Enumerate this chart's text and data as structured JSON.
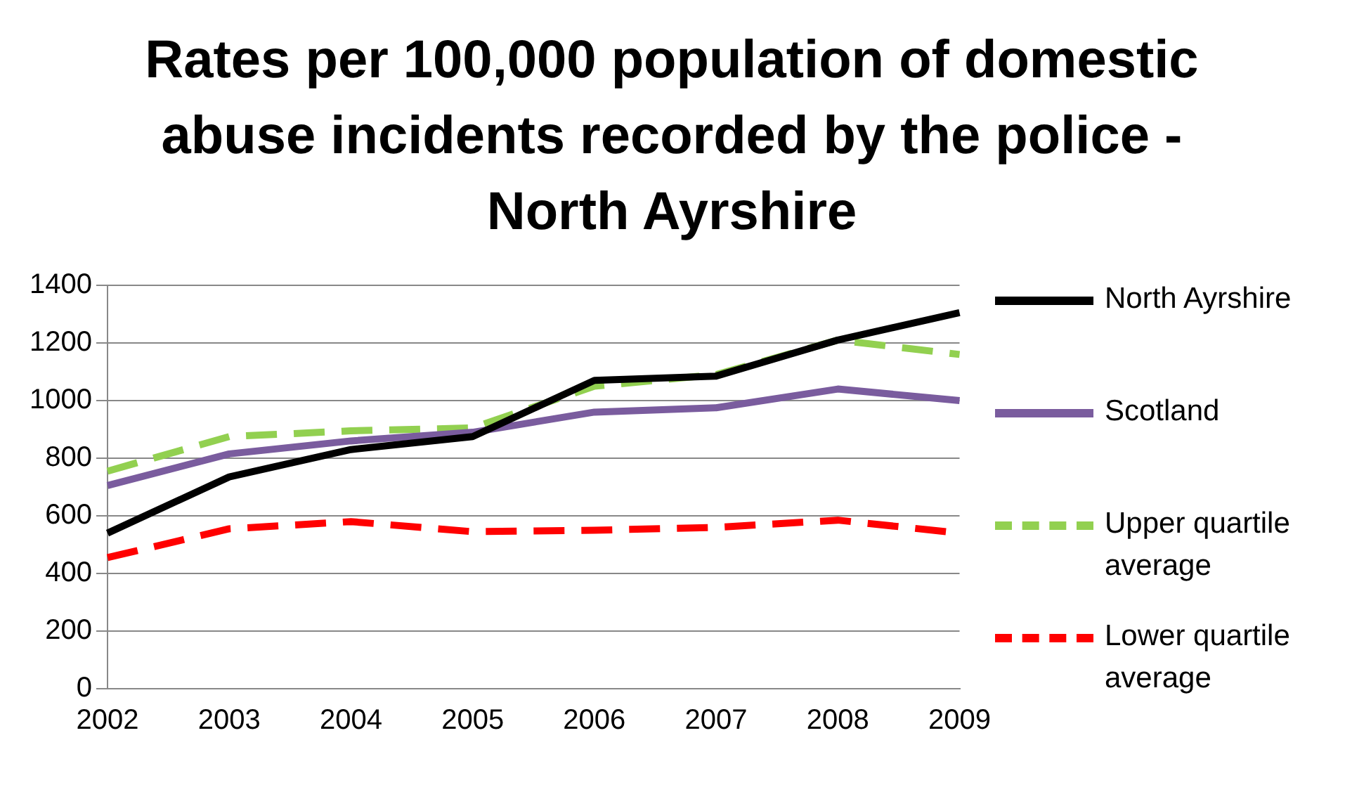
{
  "chart_data": {
    "type": "line",
    "title": "Rates per 100,000 population of domestic abuse incidents recorded by the police - North Ayrshire",
    "categories": [
      "2002",
      "2003",
      "2004",
      "2005",
      "2006",
      "2007",
      "2008",
      "2009"
    ],
    "series": [
      {
        "name": "North Ayrshire",
        "color": "#000000",
        "values": [
          540,
          735,
          830,
          875,
          1070,
          1085,
          1210,
          1305
        ],
        "line_style": "solid"
      },
      {
        "name": "Scotland",
        "color": "#7a5c9e",
        "values": [
          705,
          815,
          860,
          890,
          960,
          975,
          1040,
          1000
        ],
        "line_style": "solid"
      },
      {
        "name": "Upper quartile average",
        "color": "#92d050",
        "values": [
          755,
          875,
          895,
          905,
          1050,
          1090,
          1210,
          1160
        ],
        "line_style": "dashed"
      },
      {
        "name": "Lower quartile average",
        "color": "#ff0000",
        "values": [
          455,
          555,
          580,
          545,
          550,
          560,
          585,
          540
        ],
        "line_style": "dashed"
      }
    ],
    "ylim": [
      0,
      1400
    ],
    "yticks": [
      0,
      200,
      400,
      600,
      800,
      1000,
      1200,
      1400
    ],
    "grid": "y",
    "legend": "right",
    "marker": "none"
  }
}
